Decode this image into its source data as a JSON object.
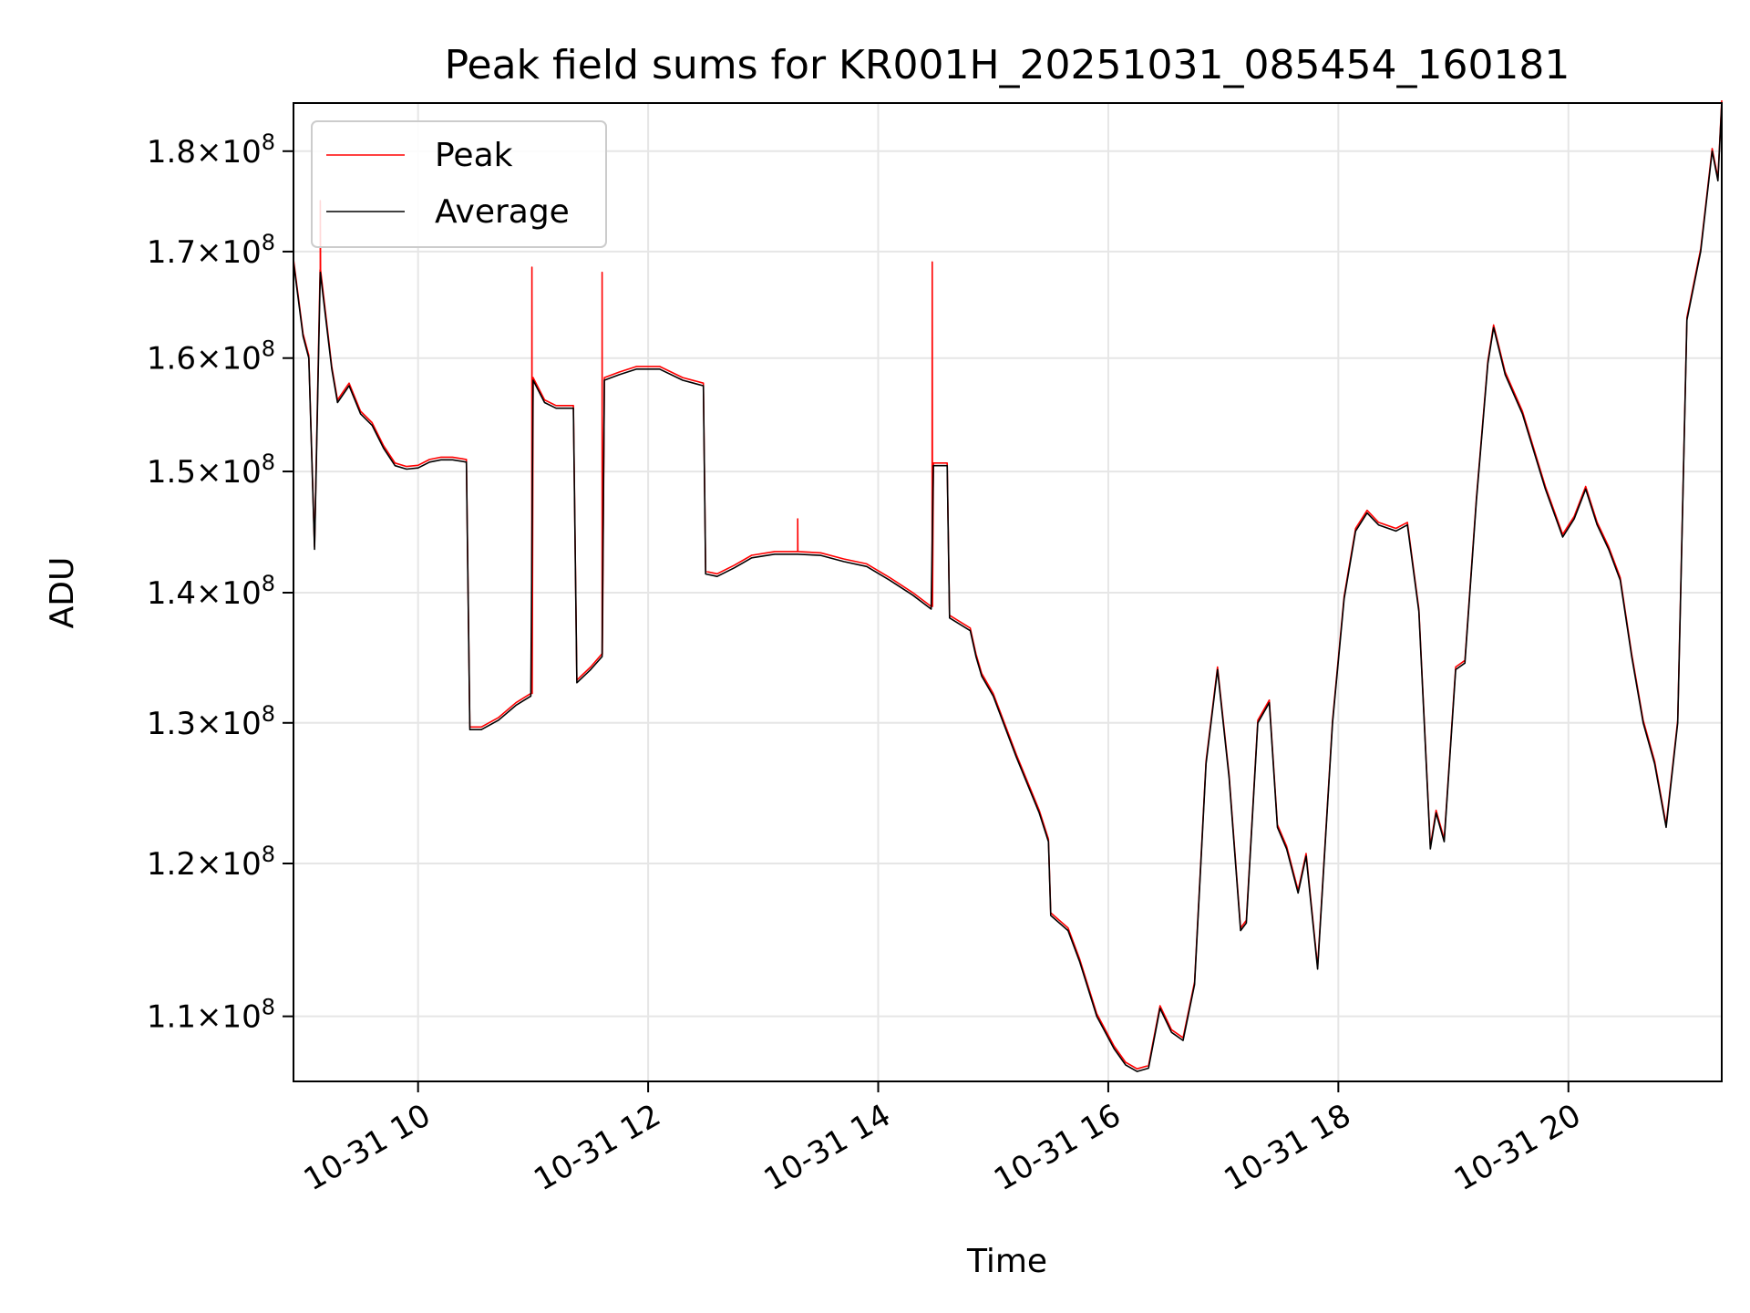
{
  "chart_data": {
    "type": "line",
    "title": "Peak field sums for KR001H_20251031_085454_160181",
    "xlabel": "Time",
    "ylabel": "ADU",
    "yscale": "log",
    "xlim": [
      8.917,
      21.333
    ],
    "ylim": [
      106000000,
      185000000
    ],
    "grid": true,
    "legend_position": "top-left",
    "x_ticks": [
      {
        "value": 10,
        "label": "10-31 10"
      },
      {
        "value": 12,
        "label": "10-31 12"
      },
      {
        "value": 14,
        "label": "10-31 14"
      },
      {
        "value": 16,
        "label": "10-31 16"
      },
      {
        "value": 18,
        "label": "10-31 18"
      },
      {
        "value": 20,
        "label": "10-31 20"
      }
    ],
    "y_ticks": [
      {
        "value": 110000000,
        "mantissa": "1.1",
        "base": "10",
        "exponent": "8"
      },
      {
        "value": 120000000,
        "mantissa": "1.2",
        "base": "10",
        "exponent": "8"
      },
      {
        "value": 130000000,
        "mantissa": "1.3",
        "base": "10",
        "exponent": "8"
      },
      {
        "value": 140000000,
        "mantissa": "1.4",
        "base": "10",
        "exponent": "8"
      },
      {
        "value": 150000000,
        "mantissa": "1.5",
        "base": "10",
        "exponent": "8"
      },
      {
        "value": 160000000,
        "mantissa": "1.6",
        "base": "10",
        "exponent": "8"
      },
      {
        "value": 170000000,
        "mantissa": "1.7",
        "base": "10",
        "exponent": "8"
      },
      {
        "value": 180000000,
        "mantissa": "1.8",
        "base": "10",
        "exponent": "8"
      }
    ],
    "x_unit": "hours on 10-31",
    "y_unit": "ADU",
    "series": [
      {
        "name": "Average",
        "color": "#000000",
        "points": [
          [
            8.917,
            169000000
          ],
          [
            9.0,
            162000000
          ],
          [
            9.05,
            160000000
          ],
          [
            9.1,
            143500000
          ],
          [
            9.15,
            168000000
          ],
          [
            9.25,
            159000000
          ],
          [
            9.3,
            156000000
          ],
          [
            9.4,
            157500000
          ],
          [
            9.5,
            155000000
          ],
          [
            9.6,
            154000000
          ],
          [
            9.7,
            152000000
          ],
          [
            9.8,
            150500000
          ],
          [
            9.9,
            150200000
          ],
          [
            10.0,
            150300000
          ],
          [
            10.1,
            150800000
          ],
          [
            10.2,
            151000000
          ],
          [
            10.3,
            151000000
          ],
          [
            10.42,
            150800000
          ],
          [
            10.45,
            129500000
          ],
          [
            10.55,
            129500000
          ],
          [
            10.7,
            130200000
          ],
          [
            10.85,
            131300000
          ],
          [
            10.98,
            132000000
          ],
          [
            11.0,
            158000000
          ],
          [
            11.1,
            156000000
          ],
          [
            11.2,
            155500000
          ],
          [
            11.35,
            155500000
          ],
          [
            11.38,
            133000000
          ],
          [
            11.5,
            134000000
          ],
          [
            11.6,
            135000000
          ],
          [
            11.62,
            158000000
          ],
          [
            11.75,
            158500000
          ],
          [
            11.9,
            159000000
          ],
          [
            12.1,
            159000000
          ],
          [
            12.3,
            158000000
          ],
          [
            12.48,
            157500000
          ],
          [
            12.5,
            141500000
          ],
          [
            12.6,
            141300000
          ],
          [
            12.75,
            142000000
          ],
          [
            12.9,
            142800000
          ],
          [
            13.1,
            143100000
          ],
          [
            13.3,
            143100000
          ],
          [
            13.5,
            143000000
          ],
          [
            13.7,
            142500000
          ],
          [
            13.9,
            142100000
          ],
          [
            14.1,
            141000000
          ],
          [
            14.3,
            139800000
          ],
          [
            14.46,
            138700000
          ],
          [
            14.48,
            150500000
          ],
          [
            14.55,
            150500000
          ],
          [
            14.6,
            150500000
          ],
          [
            14.62,
            138000000
          ],
          [
            14.8,
            137000000
          ],
          [
            14.85,
            135000000
          ],
          [
            14.9,
            133500000
          ],
          [
            15.0,
            132000000
          ],
          [
            15.2,
            127500000
          ],
          [
            15.4,
            123500000
          ],
          [
            15.48,
            121500000
          ],
          [
            15.5,
            116500000
          ],
          [
            15.65,
            115500000
          ],
          [
            15.75,
            113500000
          ],
          [
            15.9,
            110000000
          ],
          [
            16.05,
            108000000
          ],
          [
            16.15,
            107000000
          ],
          [
            16.25,
            106600000
          ],
          [
            16.35,
            106800000
          ],
          [
            16.45,
            110500000
          ],
          [
            16.55,
            109000000
          ],
          [
            16.65,
            108500000
          ],
          [
            16.75,
            112000000
          ],
          [
            16.85,
            127000000
          ],
          [
            16.95,
            134000000
          ],
          [
            17.05,
            126000000
          ],
          [
            17.15,
            115500000
          ],
          [
            17.2,
            116000000
          ],
          [
            17.3,
            130000000
          ],
          [
            17.4,
            131500000
          ],
          [
            17.47,
            122500000
          ],
          [
            17.55,
            121000000
          ],
          [
            17.65,
            118000000
          ],
          [
            17.72,
            120500000
          ],
          [
            17.82,
            113000000
          ],
          [
            17.95,
            130000000
          ],
          [
            18.05,
            139500000
          ],
          [
            18.15,
            145000000
          ],
          [
            18.25,
            146500000
          ],
          [
            18.35,
            145500000
          ],
          [
            18.5,
            145000000
          ],
          [
            18.6,
            145500000
          ],
          [
            18.7,
            138500000
          ],
          [
            18.8,
            121000000
          ],
          [
            18.85,
            123500000
          ],
          [
            18.92,
            121500000
          ],
          [
            19.02,
            134000000
          ],
          [
            19.1,
            134500000
          ],
          [
            19.2,
            147500000
          ],
          [
            19.3,
            159500000
          ],
          [
            19.35,
            162800000
          ],
          [
            19.45,
            158500000
          ],
          [
            19.6,
            155000000
          ],
          [
            19.8,
            148500000
          ],
          [
            19.95,
            144500000
          ],
          [
            20.05,
            146000000
          ],
          [
            20.15,
            148500000
          ],
          [
            20.25,
            145500000
          ],
          [
            20.35,
            143500000
          ],
          [
            20.45,
            141000000
          ],
          [
            20.55,
            135000000
          ],
          [
            20.65,
            130000000
          ],
          [
            20.75,
            127000000
          ],
          [
            20.85,
            122500000
          ],
          [
            20.95,
            130000000
          ],
          [
            21.03,
            163500000
          ],
          [
            21.15,
            170000000
          ],
          [
            21.25,
            180000000
          ],
          [
            21.3,
            177000000
          ],
          [
            21.333,
            185000000
          ]
        ]
      },
      {
        "name": "Peak",
        "color": "#ff0000",
        "spikes": [
          {
            "x": 9.15,
            "value": 175000000
          },
          {
            "x": 10.99,
            "value": 168500000
          },
          {
            "x": 11.6,
            "value": 168000000
          },
          {
            "x": 13.3,
            "value": 146000000
          },
          {
            "x": 14.47,
            "value": 169000000
          }
        ]
      }
    ]
  }
}
